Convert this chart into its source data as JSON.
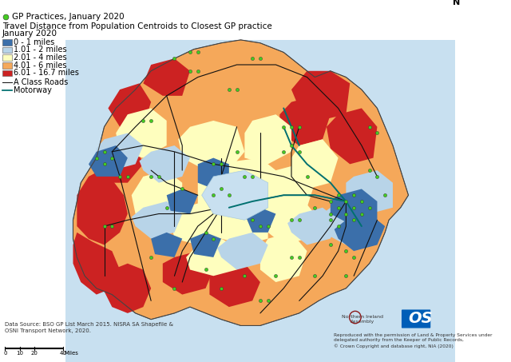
{
  "title_line1": "Travel Distance from Population Centroids to Closest GP practice",
  "title_line2": "January 2020",
  "legend_gp": "GP Practices, January 2020",
  "legend_items": [
    {
      "label": "0 - 1 miles",
      "color": "#3b6faa"
    },
    {
      "label": "1.01 - 2 miles",
      "color": "#b8d4e8"
    },
    {
      "label": "2.01 - 4 miles",
      "color": "#fefebe"
    },
    {
      "label": "4.01 - 6 miles",
      "color": "#f5a85a"
    },
    {
      "label": "6.01 - 16.7 miles",
      "color": "#cc2222"
    }
  ],
  "legend_roads": [
    {
      "label": "A Class Roads",
      "color": "#111111",
      "lw": 0.8
    },
    {
      "label": "Motorway",
      "color": "#007070",
      "lw": 1.4
    }
  ],
  "data_source": "Data Source: BSO GP List March 2015. NISRA SA Shapefile &\nOSNI Transport Network, 2020.",
  "copyright_text": "Reproduced with the permission of Land & Property Services under\ndelegated authority from the Keeper of Public Records,\n© Crown Copyright and database right, NIA (2020)",
  "bg_color": "#ffffff",
  "water_color": "#c8e0f0",
  "gp_color": "#44cc22",
  "gp_size": 9
}
